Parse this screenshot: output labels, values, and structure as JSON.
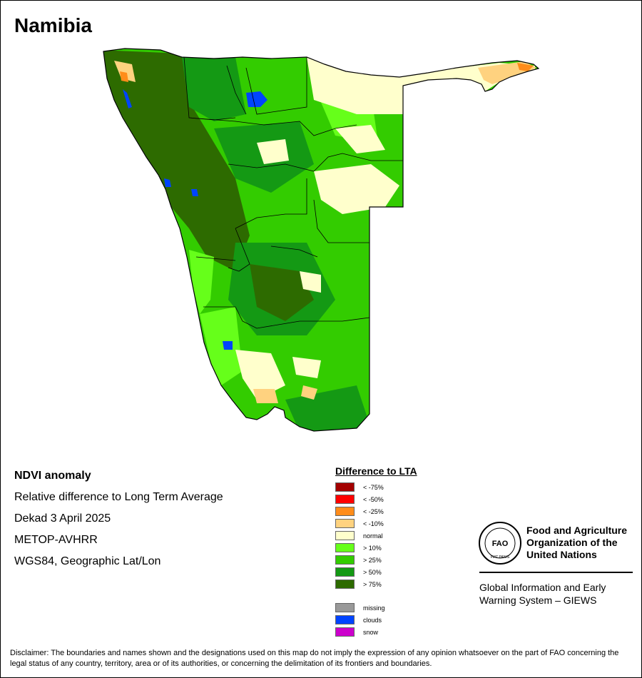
{
  "map": {
    "title": "Namibia",
    "colors": {
      "border": "#000000",
      "water_blue": "#0033ff"
    }
  },
  "info": {
    "product": "NDVI anomaly",
    "description": "Relative difference to Long Term Average",
    "period": "Dekad 3 April 2025",
    "sensor": "METOP-AVHRR",
    "projection": "WGS84, Geographic Lat/Lon"
  },
  "legend": {
    "title": "Difference to LTA",
    "classes": [
      {
        "label": "< -75%",
        "color": "#a30000"
      },
      {
        "label": "< -50%",
        "color": "#ff0000"
      },
      {
        "label": "< -25%",
        "color": "#ff8c1a"
      },
      {
        "label": "< -10%",
        "color": "#ffd27f"
      },
      {
        "label": "normal",
        "color": "#ffffcc"
      },
      {
        "label": "> 10%",
        "color": "#66ff1a"
      },
      {
        "label": "> 25%",
        "color": "#33cc00"
      },
      {
        "label": "> 50%",
        "color": "#149914"
      },
      {
        "label": "> 75%",
        "color": "#2d6b00"
      }
    ],
    "extra": [
      {
        "label": "missing",
        "color": "#999999"
      },
      {
        "label": "clouds",
        "color": "#0044ff"
      },
      {
        "label": "snow",
        "color": "#cc00cc"
      }
    ]
  },
  "branding": {
    "org_name_line1": "Food and Agriculture",
    "org_name_line2": "Organization of the",
    "org_name_line3": "United Nations",
    "system_line1": "Global Information and Early",
    "system_line2": "Warning System – GIEWS",
    "logo_text": "FAO",
    "logo_motto": "FIAT PANIS"
  },
  "disclaimer": "Disclaimer: The boundaries and names shown and the designations used on this map do not imply the expression of any opinion whatsoever on the part of FAO concerning the legal status of any country, territory, area or of its authorities, or concerning the delimitation of its frontiers and boundaries."
}
